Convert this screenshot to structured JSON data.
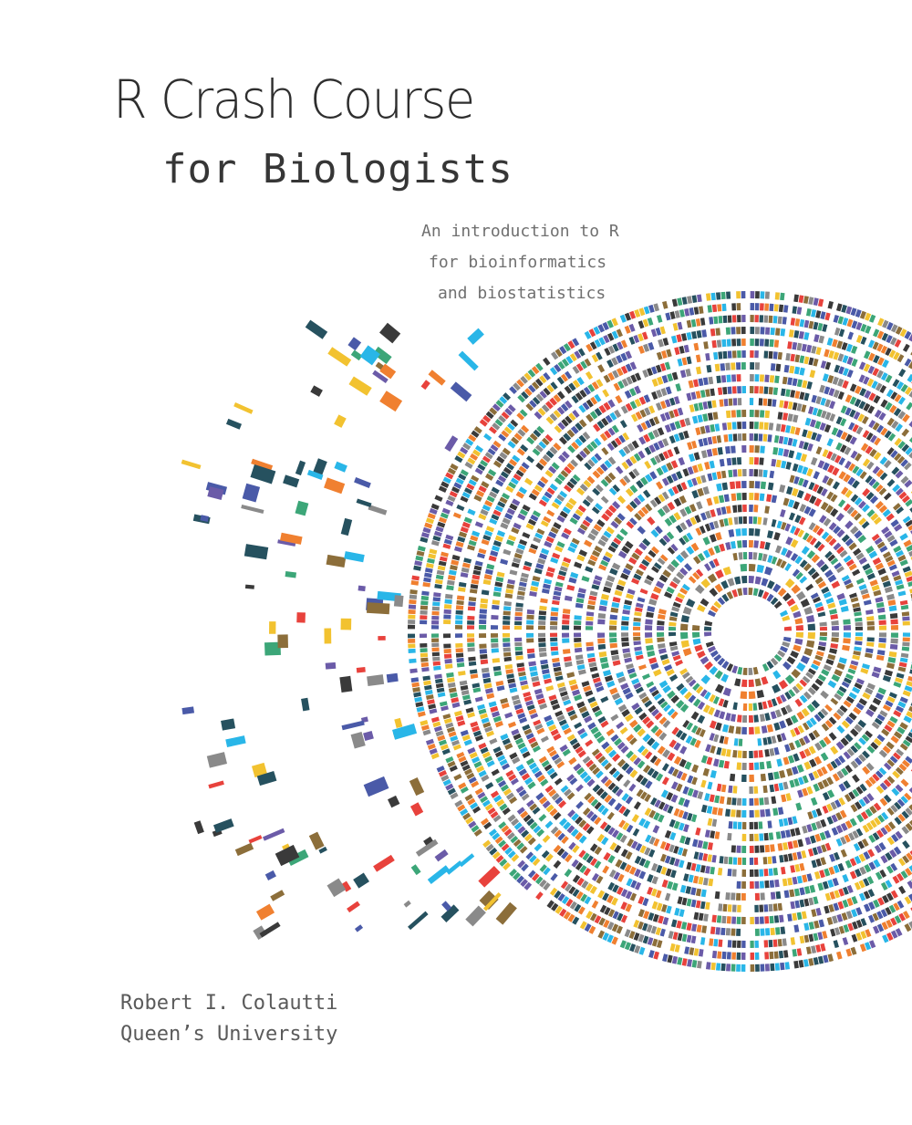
{
  "cover": {
    "title_line1": "R Crash Course",
    "title_line2": "for Biologists",
    "subtitle": [
      "An introduction to R",
      "for bioinformatics",
      "and biostatistics"
    ],
    "author": "Robert I. Colautti",
    "institution": "Queen’s University"
  },
  "palette": [
    "#29b6e8",
    "#f2c230",
    "#e8423c",
    "#4a5aa8",
    "#26515f",
    "#8c6e3a",
    "#6b5ba8",
    "#3ca678",
    "#8a8a8a",
    "#3a3a3a",
    "#f08030"
  ]
}
